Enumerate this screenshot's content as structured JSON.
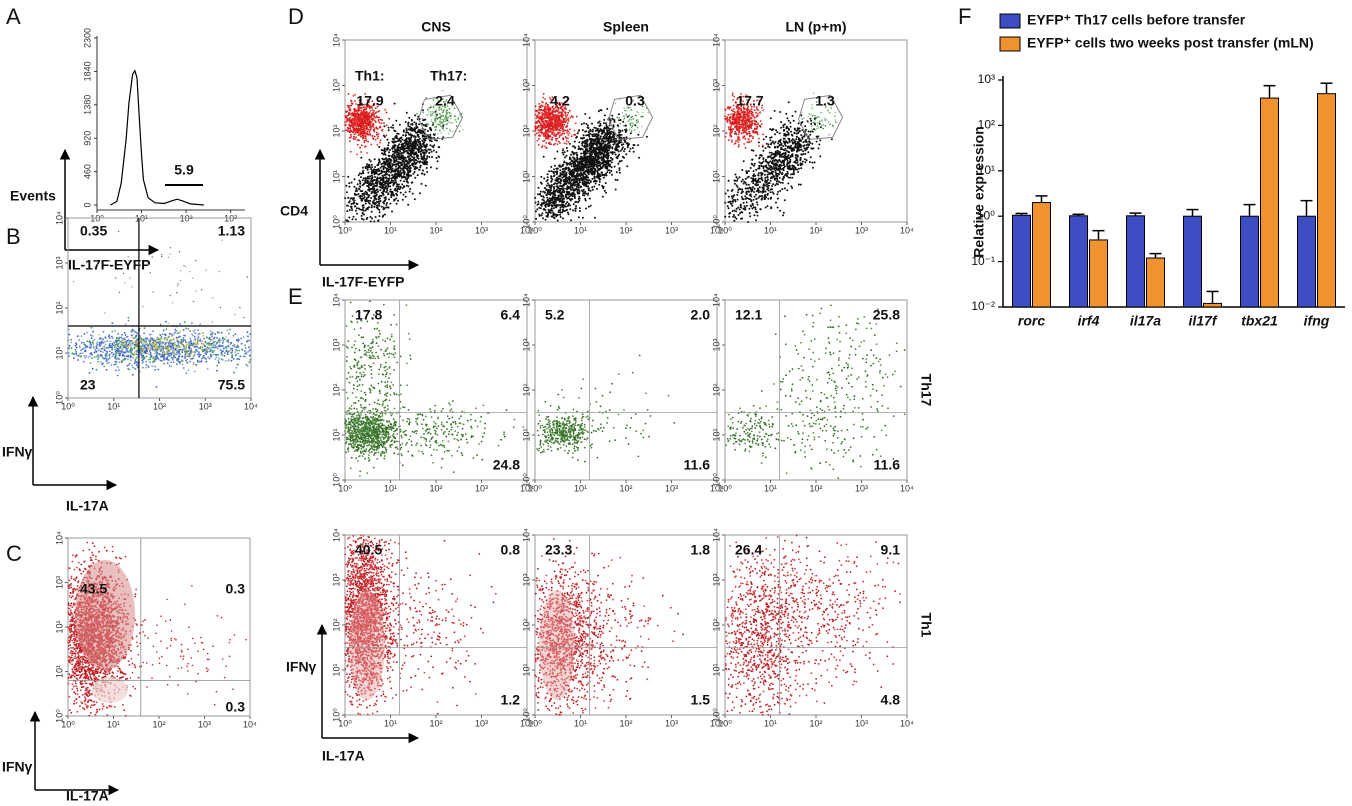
{
  "panel_a": {
    "letter": "A",
    "ylabel": "Events",
    "xlabel": "IL-17F-EYFP",
    "gate_label": 5.9,
    "ylim": [
      0,
      2300
    ],
    "yticks": [
      0,
      460,
      920,
      1380,
      1840,
      2300
    ],
    "xlim": [
      1,
      2100
    ],
    "xscale": "log",
    "xticks": [
      {
        "value": 1,
        "label": "10⁰"
      },
      {
        "value": 10,
        "label": "10¹"
      },
      {
        "value": 100,
        "label": "10²"
      },
      {
        "value": 1000,
        "label": "10³"
      }
    ],
    "histogram": {
      "x": [
        2,
        2.8,
        3.5,
        4.5,
        5.2,
        6.3,
        7.1,
        7.9,
        8.9,
        10,
        11,
        14,
        20,
        32,
        50,
        63,
        79,
        126,
        250
      ],
      "y": [
        0,
        50,
        300,
        900,
        1400,
        1800,
        1850,
        1750,
        1200,
        700,
        350,
        100,
        30,
        20,
        60,
        80,
        60,
        15,
        0
      ]
    }
  },
  "flow_ticks": [
    {
      "value": 1,
      "label": "10⁰"
    },
    {
      "value": 10,
      "label": "10¹"
    },
    {
      "value": 100,
      "label": "10²"
    },
    {
      "value": 1000,
      "label": "10³"
    },
    {
      "value": 10000,
      "label": "10⁴"
    }
  ],
  "flow_lim": [
    1,
    10000
  ],
  "panel_b": {
    "letter": "B",
    "xlabel": "IL-17A",
    "ylabel": "IFNγ",
    "quadrants": [
      0.35,
      1.13,
      23,
      75.5
    ]
  },
  "panel_c": {
    "letter": "C",
    "xlabel": "IL-17A",
    "ylabel": "IFNγ",
    "quadrants": [
      43.5,
      0.3,
      0.3
    ]
  },
  "panel_d": {
    "letter": "D",
    "xlabel": "IL-17F-EYFP",
    "ylabel": "CD4",
    "gate_names": [
      "Th1:",
      "Th17:"
    ],
    "plots": [
      {
        "title": "CNS",
        "values": [
          17.9,
          2.4
        ]
      },
      {
        "title": "Spleen",
        "values": [
          4.2,
          0.3
        ]
      },
      {
        "title": "LN (p+m)",
        "values": [
          17.7,
          1.3
        ]
      }
    ]
  },
  "panel_e": {
    "letter": "E",
    "xlabel": "IL-17A",
    "ylabel": "IFNγ",
    "rows": [
      {
        "name": "Th17",
        "plots": [
          {
            "values": [
              17.8,
              6.4,
              24.8
            ]
          },
          {
            "values": [
              5.2,
              2,
              11.6
            ],
            "value_labels": [
              "5.2",
              "2.0",
              "11.6"
            ]
          },
          {
            "values": [
              12.1,
              25.8,
              11.6
            ]
          }
        ]
      },
      {
        "name": "Th1",
        "plots": [
          {
            "values": [
              40.5,
              0.8,
              1.2
            ]
          },
          {
            "values": [
              23.3,
              1.8,
              1.5
            ]
          },
          {
            "values": [
              26.4,
              9.1,
              4.8
            ]
          }
        ]
      }
    ]
  },
  "panel_f": {
    "letter": "F",
    "chart_data": {
      "type": "bar",
      "ylabel": "Relative expression",
      "categories": [
        "rorc",
        "irf4",
        "il17a",
        "il17f",
        "tbx21",
        "ifng"
      ],
      "series": [
        {
          "name": "EYFP⁺ Th17 cells before transfer",
          "color": "#3c4ec2",
          "values": [
            1.05,
            1.02,
            1.02,
            1.0,
            1.0,
            1.0
          ],
          "errors": [
            0.1,
            0.08,
            0.15,
            0.4,
            0.8,
            1.2
          ]
        },
        {
          "name": "EYFP⁺ cells two weeks post transfer (mLN)",
          "color": "#f0922e",
          "values": [
            2.0,
            0.3,
            0.12,
            0.012,
            400,
            500
          ],
          "errors": [
            0.8,
            0.18,
            0.03,
            0.01,
            350,
            350
          ]
        }
      ],
      "ylim": [
        0.01,
        1000
      ],
      "yscale": "log",
      "yticks": [
        {
          "value": 0.01,
          "label": "10⁻²"
        },
        {
          "value": 0.1,
          "label": "10⁻¹"
        },
        {
          "value": 1,
          "label": "10⁰"
        },
        {
          "value": 10,
          "label": "10¹"
        },
        {
          "value": 100,
          "label": "10²"
        },
        {
          "value": 1000,
          "label": "10³"
        }
      ]
    }
  }
}
